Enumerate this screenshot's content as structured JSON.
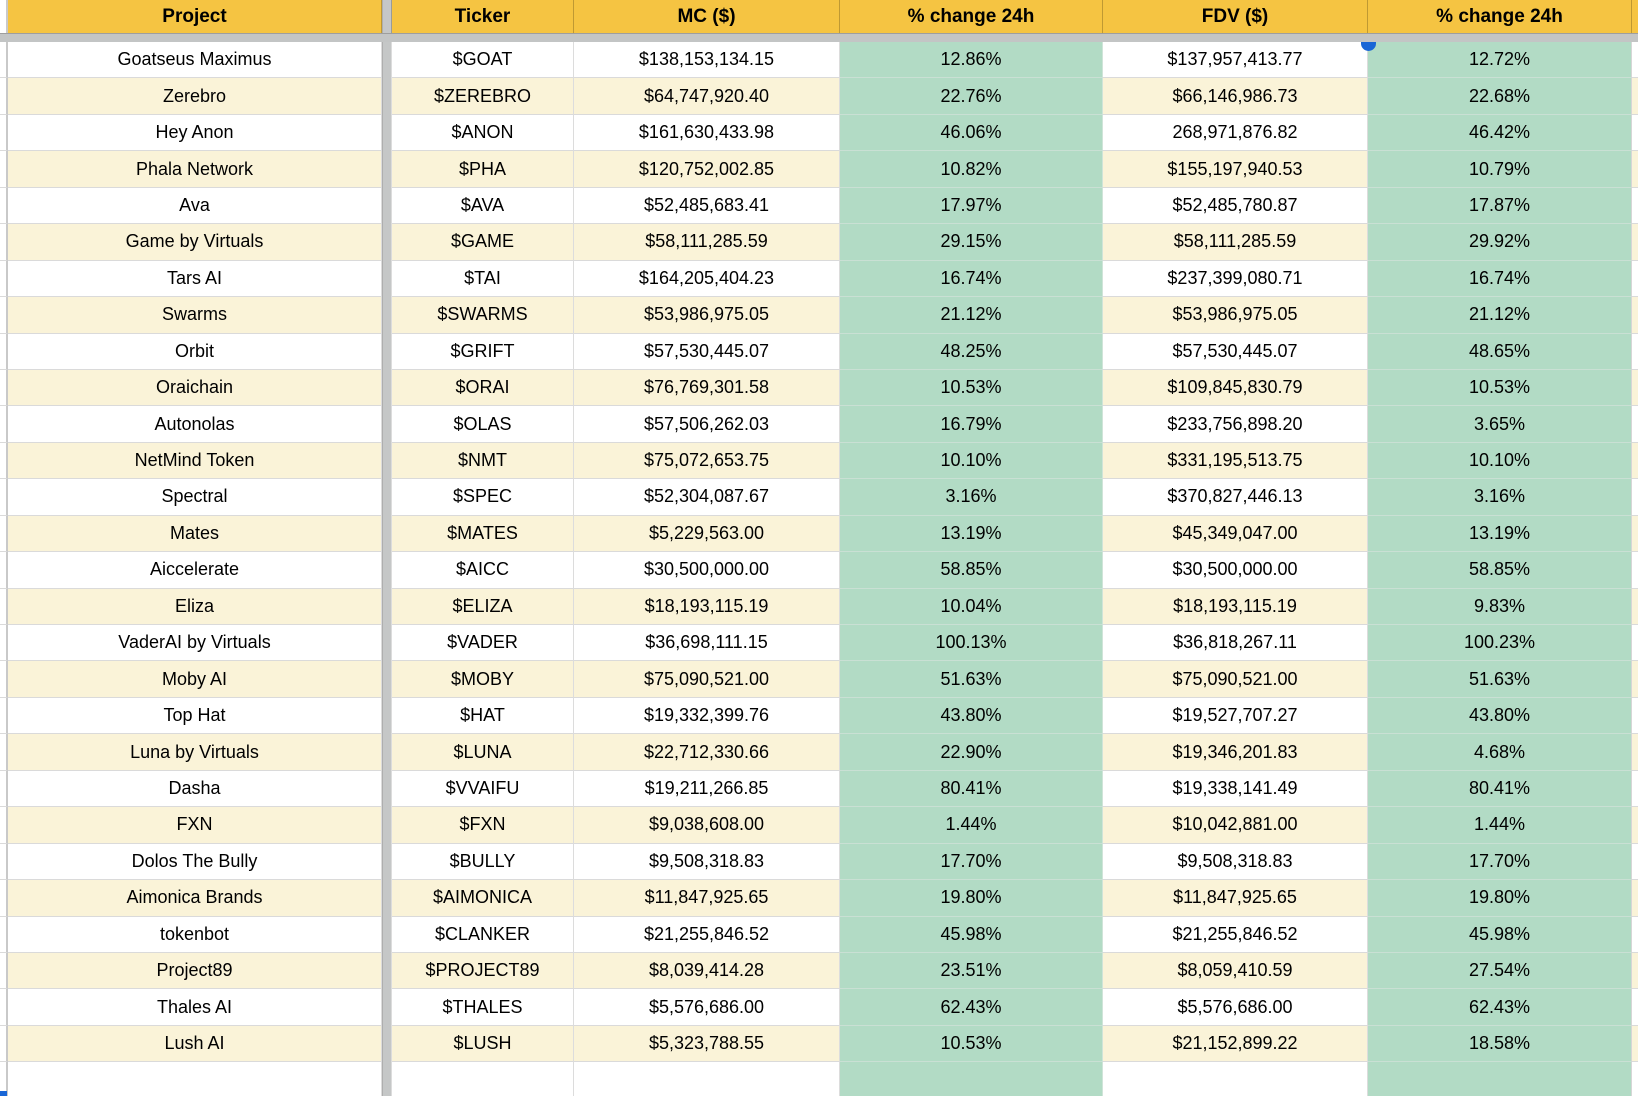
{
  "sheet": {
    "columns": [
      "Project",
      "Ticker",
      "MC ($)",
      "% change 24h",
      "FDV ($)",
      "% change 24h"
    ],
    "rows": [
      [
        "Goatseus Maximus",
        "$GOAT",
        "$138,153,134.15",
        "12.86%",
        "$137,957,413.77",
        "12.72%"
      ],
      [
        "Zerebro",
        "$ZEREBRO",
        "$64,747,920.40",
        "22.76%",
        "$66,146,986.73",
        "22.68%"
      ],
      [
        "Hey Anon",
        "$ANON",
        "$161,630,433.98",
        "46.06%",
        "268,971,876.82",
        "46.42%"
      ],
      [
        "Phala Network",
        "$PHA",
        "$120,752,002.85",
        "10.82%",
        "$155,197,940.53",
        "10.79%"
      ],
      [
        "Ava",
        "$AVA",
        "$52,485,683.41",
        "17.97%",
        "$52,485,780.87",
        "17.87%"
      ],
      [
        "Game by Virtuals",
        "$GAME",
        "$58,111,285.59",
        "29.15%",
        "$58,111,285.59",
        "29.92%"
      ],
      [
        "Tars AI",
        "$TAI",
        "$164,205,404.23",
        "16.74%",
        "$237,399,080.71",
        "16.74%"
      ],
      [
        "Swarms",
        "$SWARMS",
        "$53,986,975.05",
        "21.12%",
        "$53,986,975.05",
        "21.12%"
      ],
      [
        "Orbit",
        "$GRIFT",
        "$57,530,445.07",
        "48.25%",
        "$57,530,445.07",
        "48.65%"
      ],
      [
        "Oraichain",
        "$ORAI",
        "$76,769,301.58",
        "10.53%",
        "$109,845,830.79",
        "10.53%"
      ],
      [
        "Autonolas",
        "$OLAS",
        "$57,506,262.03",
        "16.79%",
        "$233,756,898.20",
        "3.65%"
      ],
      [
        "NetMind Token",
        "$NMT",
        "$75,072,653.75",
        "10.10%",
        "$331,195,513.75",
        "10.10%"
      ],
      [
        "Spectral",
        "$SPEC",
        "$52,304,087.67",
        "3.16%",
        "$370,827,446.13",
        "3.16%"
      ],
      [
        "Mates",
        "$MATES",
        "$5,229,563.00",
        "13.19%",
        "$45,349,047.00",
        "13.19%"
      ],
      [
        "Aiccelerate",
        "$AICC",
        "$30,500,000.00",
        "58.85%",
        "$30,500,000.00",
        "58.85%"
      ],
      [
        "Eliza",
        "$ELIZA",
        "$18,193,115.19",
        "10.04%",
        "$18,193,115.19",
        "9.83%"
      ],
      [
        "VaderAI by Virtuals",
        "$VADER",
        "$36,698,111.15",
        "100.13%",
        "$36,818,267.11",
        "100.23%"
      ],
      [
        "Moby AI",
        "$MOBY",
        "$75,090,521.00",
        "51.63%",
        "$75,090,521.00",
        "51.63%"
      ],
      [
        "Top Hat",
        "$HAT",
        "$19,332,399.76",
        "43.80%",
        "$19,527,707.27",
        "43.80%"
      ],
      [
        "Luna by Virtuals",
        "$LUNA",
        "$22,712,330.66",
        "22.90%",
        "$19,346,201.83",
        "4.68%"
      ],
      [
        "Dasha",
        "$VVAIFU",
        "$19,211,266.85",
        "80.41%",
        "$19,338,141.49",
        "80.41%"
      ],
      [
        "FXN",
        "$FXN",
        "$9,038,608.00",
        "1.44%",
        "$10,042,881.00",
        "1.44%"
      ],
      [
        "Dolos The Bully",
        "$BULLY",
        "$9,508,318.83",
        "17.70%",
        "$9,508,318.83",
        "17.70%"
      ],
      [
        "Aimonica Brands",
        "$AIMONICA",
        "$11,847,925.65",
        "19.80%",
        "$11,847,925.65",
        "19.80%"
      ],
      [
        "tokenbot",
        "$CLANKER",
        "$21,255,846.52",
        "45.98%",
        "$21,255,846.52",
        "45.98%"
      ],
      [
        "Project89",
        "$PROJECT89",
        "$8,039,414.28",
        "23.51%",
        "$8,059,410.59",
        "27.54%"
      ],
      [
        "Thales AI",
        "$THALES",
        "$5,576,686.00",
        "62.43%",
        "$5,576,686.00",
        "62.43%"
      ],
      [
        "Lush AI",
        "$LUSH",
        "$5,323,788.55",
        "10.53%",
        "$21,152,899.22",
        "18.58%"
      ]
    ]
  },
  "colors": {
    "header_bg": "#f5c442",
    "band_bg": "#faf3d8",
    "positive_green_bg": "#b2dbc5",
    "frozen_divider_gray": "#c5c7c7",
    "marker_blue": "#1a66d6"
  }
}
